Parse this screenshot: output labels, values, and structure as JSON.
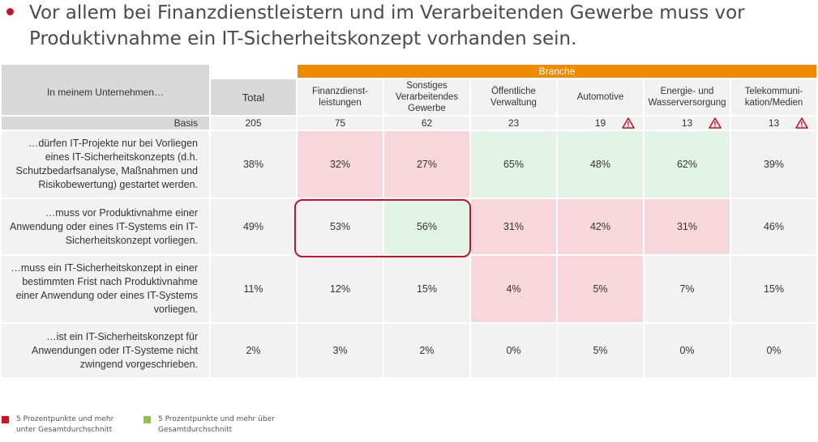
{
  "headline": "Vor allem bei Finanzdienstleistern und im Verarbeitenden Gewerbe muss vor Produktivnahme ein IT-Sicherheitskonzept vorhanden sein.",
  "table": {
    "group_header": "Branche",
    "row_header": "In meinem Unternehmen…",
    "total_header": "Total",
    "columns": [
      "Finanzdienst-\nleistungen",
      "Sonstiges Verarbeitendes Gewerbe",
      "Öffentliche Verwaltung",
      "Automotive",
      "Energie- und Wasserversorgung",
      "Telekommuni-\nkation/Medien"
    ],
    "basis": {
      "label": "Basis",
      "total": "205",
      "values": [
        "75",
        "62",
        "23",
        "19",
        "13",
        "13"
      ],
      "warning": [
        false,
        false,
        false,
        true,
        true,
        true
      ]
    },
    "rows": [
      {
        "label": "…dürfen IT-Projekte nur bei Vorliegen eines IT-Sicherheitskonzepts (d.h. Schutzbedarfsanalyse, Maßnahmen und Risikobewertung) gestartet werden.",
        "total": "38%",
        "values": [
          "32%",
          "27%",
          "65%",
          "48%",
          "62%",
          "39%"
        ],
        "status": [
          "neg",
          "neg",
          "pos",
          "pos",
          "pos",
          "none"
        ]
      },
      {
        "label": "…muss vor Produktivnahme einer Anwendung oder eines IT-Systems ein IT-Sicherheitskonzept vorliegen.",
        "total": "49%",
        "values": [
          "53%",
          "56%",
          "31%",
          "42%",
          "31%",
          "46%"
        ],
        "status": [
          "none",
          "pos",
          "neg",
          "neg",
          "neg",
          "none"
        ]
      },
      {
        "label": "…muss ein IT-Sicherheitskonzept in einer bestimmten Frist nach Produktivnahme einer Anwendung oder eines IT-Systems vorliegen.",
        "total": "11%",
        "values": [
          "12%",
          "15%",
          "4%",
          "5%",
          "7%",
          "15%"
        ],
        "status": [
          "none",
          "none",
          "neg",
          "neg",
          "none",
          "none"
        ]
      },
      {
        "label": "…ist ein IT-Sicherheitskonzept für Anwendungen oder IT-Systeme nicht zwingend vorgeschrieben.",
        "total": "2%",
        "values": [
          "3%",
          "2%",
          "0%",
          "5%",
          "0%",
          "0%"
        ],
        "status": [
          "none",
          "none",
          "none",
          "none",
          "none",
          "none"
        ]
      }
    ]
  },
  "legend": [
    {
      "text": "5 Prozentpunkte und mehr unter Gesamtdurchschnitt",
      "color": "#d0112b"
    },
    {
      "text": "5 Prozentpunkte und mehr über Gesamtdurchschnitt",
      "color": "#8cc34b"
    }
  ],
  "colors": {
    "accent_red": "#c8102e",
    "branche_orange": "#f08a00",
    "below_fill": "#f8d7dc",
    "above_fill": "#e2f4e6",
    "warning_red": "#d0112b"
  },
  "icons": {
    "bullet": "bullet-dot-icon",
    "basis_warning": "warning-triangle-icon"
  }
}
